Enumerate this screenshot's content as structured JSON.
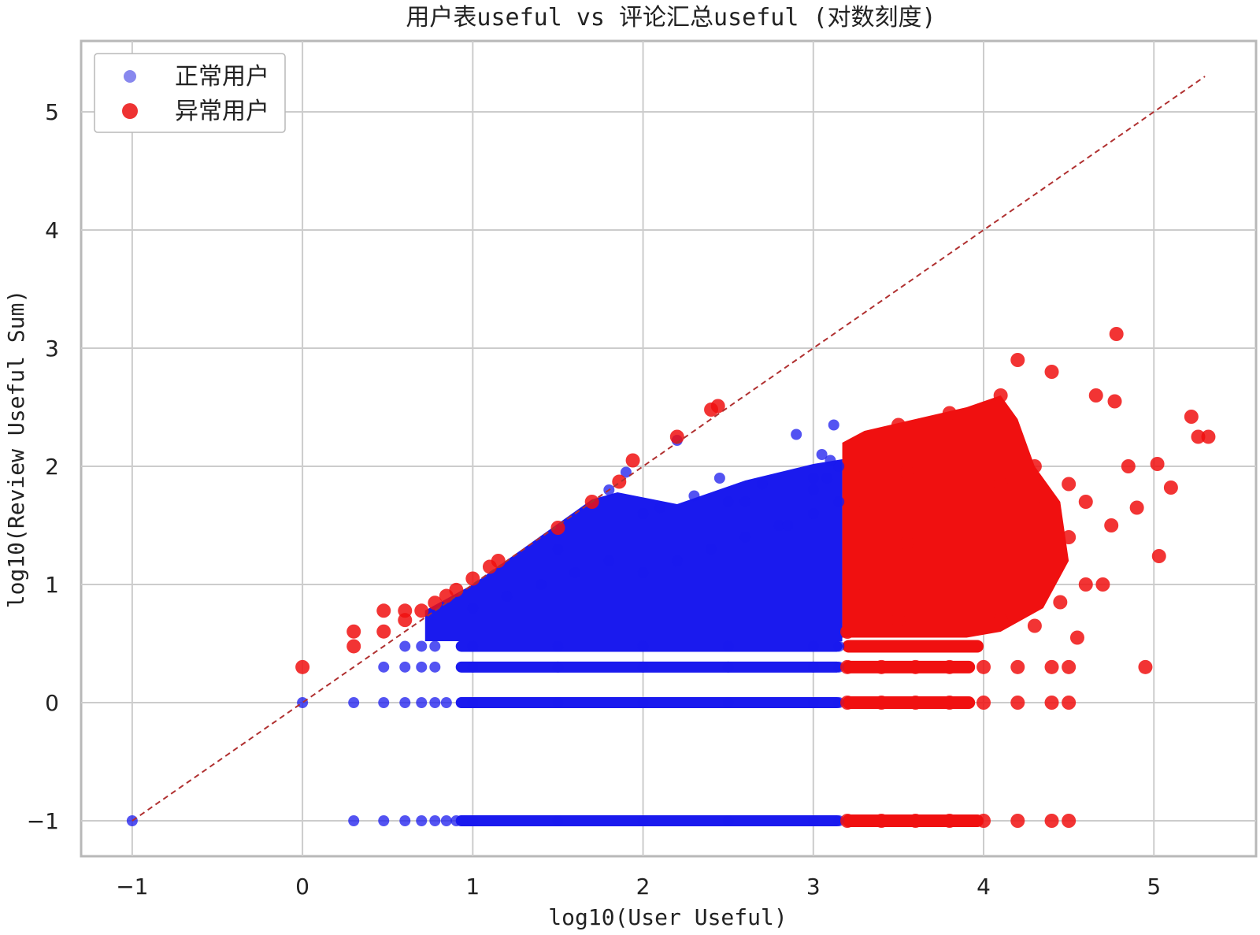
{
  "chart_data": {
    "type": "scatter",
    "title": "用户表useful vs 评论汇总useful (对数刻度)",
    "xlabel": "log10(User Useful)",
    "ylabel": "log10(Review Useful Sum)",
    "xlim": [
      -1.3,
      5.6
    ],
    "ylim": [
      -1.3,
      5.6
    ],
    "xticks": [
      -1,
      0,
      1,
      2,
      3,
      4,
      5
    ],
    "yticks": [
      -1,
      0,
      1,
      2,
      3,
      4,
      5
    ],
    "xtick_labels": [
      "−1",
      "0",
      "1",
      "2",
      "3",
      "4",
      "5"
    ],
    "ytick_labels": [
      "−1",
      "0",
      "1",
      "2",
      "3",
      "4",
      "5"
    ],
    "grid": true,
    "legend_position": "top-left",
    "reference_line": {
      "style": "dashed",
      "color": "#b03030",
      "x": [
        -1,
        5.3
      ],
      "y": [
        -1,
        5.3
      ]
    },
    "series": [
      {
        "name": "正常用户",
        "color": "#1a1aee",
        "legend_color": "#8888ee",
        "x": [
          -1,
          0,
          0.301,
          0.477,
          0.602,
          0.699,
          0.778,
          0.845,
          0.903,
          0.954,
          1,
          1.5,
          2,
          2.5,
          3,
          3.15,
          0.301,
          0.477,
          0.602,
          0.699,
          0.778,
          0.845,
          1,
          1.5,
          2,
          2.5,
          3,
          3.15,
          0.477,
          0.602,
          0.699,
          0.778,
          1,
          1.5,
          2,
          2.5,
          3,
          3.15,
          0.602,
          0.699,
          0.778,
          1,
          1.5,
          2,
          2.5,
          3,
          3.15,
          1,
          1.2,
          1.4,
          1.6,
          1.8,
          2,
          2.2,
          2.4,
          2.6,
          2.8,
          3,
          3.15,
          1.5,
          2,
          2.5,
          3,
          3.15,
          1.8,
          2.3,
          2.7,
          3.1,
          1.9,
          2.1,
          2.45,
          2.9,
          3.05,
          3.12,
          2.2,
          2.6,
          2.85,
          3.0,
          3.08
        ],
        "y": [
          -1,
          0,
          -1,
          -1,
          -1,
          -1,
          -1,
          -1,
          -1,
          -1,
          -1,
          -1,
          -1,
          -1,
          -1,
          -1,
          0,
          0,
          0,
          0,
          0,
          0,
          0,
          0,
          0,
          0,
          0,
          0,
          0.301,
          0.301,
          0.301,
          0.301,
          0.301,
          0.301,
          0.301,
          0.301,
          0.301,
          0.301,
          0.477,
          0.477,
          0.477,
          0.477,
          0.477,
          0.477,
          0.477,
          0.477,
          0.477,
          0.8,
          0.9,
          1.0,
          1.1,
          1.2,
          1.1,
          1.2,
          1.3,
          1.4,
          1.5,
          1.6,
          1.7,
          1.3,
          1.6,
          1.7,
          1.9,
          2.0,
          1.8,
          1.75,
          1.85,
          2.05,
          1.95,
          1.65,
          1.9,
          2.27,
          2.1,
          2.35,
          2.22,
          1.7,
          1.5,
          1.8,
          1.9
        ]
      },
      {
        "name": "异常用户",
        "color": "#f01010",
        "legend_color": "#ee3333",
        "x": [
          0,
          0.301,
          0.301,
          0.477,
          0.477,
          0.602,
          0.602,
          0.699,
          0.778,
          0.845,
          0.903,
          1,
          1.1,
          1.15,
          1.5,
          1.7,
          1.86,
          1.94,
          2.2,
          2.4,
          2.44,
          3.2,
          3.4,
          3.6,
          3.8,
          4.0,
          4.2,
          4.4,
          4.5,
          3.2,
          3.4,
          3.6,
          3.8,
          4.0,
          4.2,
          4.4,
          4.5,
          3.2,
          3.4,
          3.6,
          3.8,
          4.0,
          4.2,
          4.4,
          4.5,
          4.95,
          3.2,
          3.5,
          3.8,
          4.1,
          4.3,
          4.55,
          3.3,
          3.6,
          3.9,
          4.2,
          4.45,
          3.25,
          3.55,
          3.85,
          4.15,
          4.4,
          4.7,
          3.3,
          3.6,
          3.9,
          4.2,
          4.5,
          3.3,
          3.55,
          3.85,
          4.1,
          4.35,
          4.6,
          3.4,
          3.7,
          4.0,
          4.3,
          4.5,
          3.5,
          3.8,
          4.1,
          4.2,
          4.4,
          4.78,
          4.85,
          5.02,
          5.03,
          5.1,
          5.22,
          5.26,
          5.32,
          4.6,
          4.75,
          4.9,
          4.66,
          4.77
        ],
        "y": [
          0.301,
          0.477,
          0.602,
          0.602,
          0.778,
          0.699,
          0.778,
          0.778,
          0.845,
          0.903,
          0.954,
          1.05,
          1.15,
          1.2,
          1.48,
          1.7,
          1.87,
          2.05,
          2.25,
          2.48,
          2.51,
          -1,
          -1,
          -1,
          -1,
          -1,
          -1,
          -1,
          -1,
          0,
          0,
          0,
          0,
          0,
          0,
          0,
          0,
          0.301,
          0.301,
          0.301,
          0.301,
          0.301,
          0.301,
          0.301,
          0.301,
          0.301,
          0.6,
          0.7,
          0.8,
          0.7,
          0.65,
          0.55,
          1.0,
          1.1,
          1.0,
          0.9,
          0.85,
          1.4,
          1.35,
          1.3,
          1.2,
          1.1,
          1.0,
          1.7,
          1.65,
          1.6,
          1.5,
          1.4,
          2.0,
          1.95,
          1.9,
          1.85,
          1.75,
          1.7,
          2.2,
          2.3,
          2.1,
          2.0,
          1.85,
          2.35,
          2.45,
          2.6,
          2.9,
          2.8,
          3.12,
          2.0,
          2.02,
          1.24,
          1.82,
          2.42,
          2.25,
          2.25,
          1.0,
          1.5,
          1.65,
          2.6,
          2.55
        ]
      }
    ]
  }
}
